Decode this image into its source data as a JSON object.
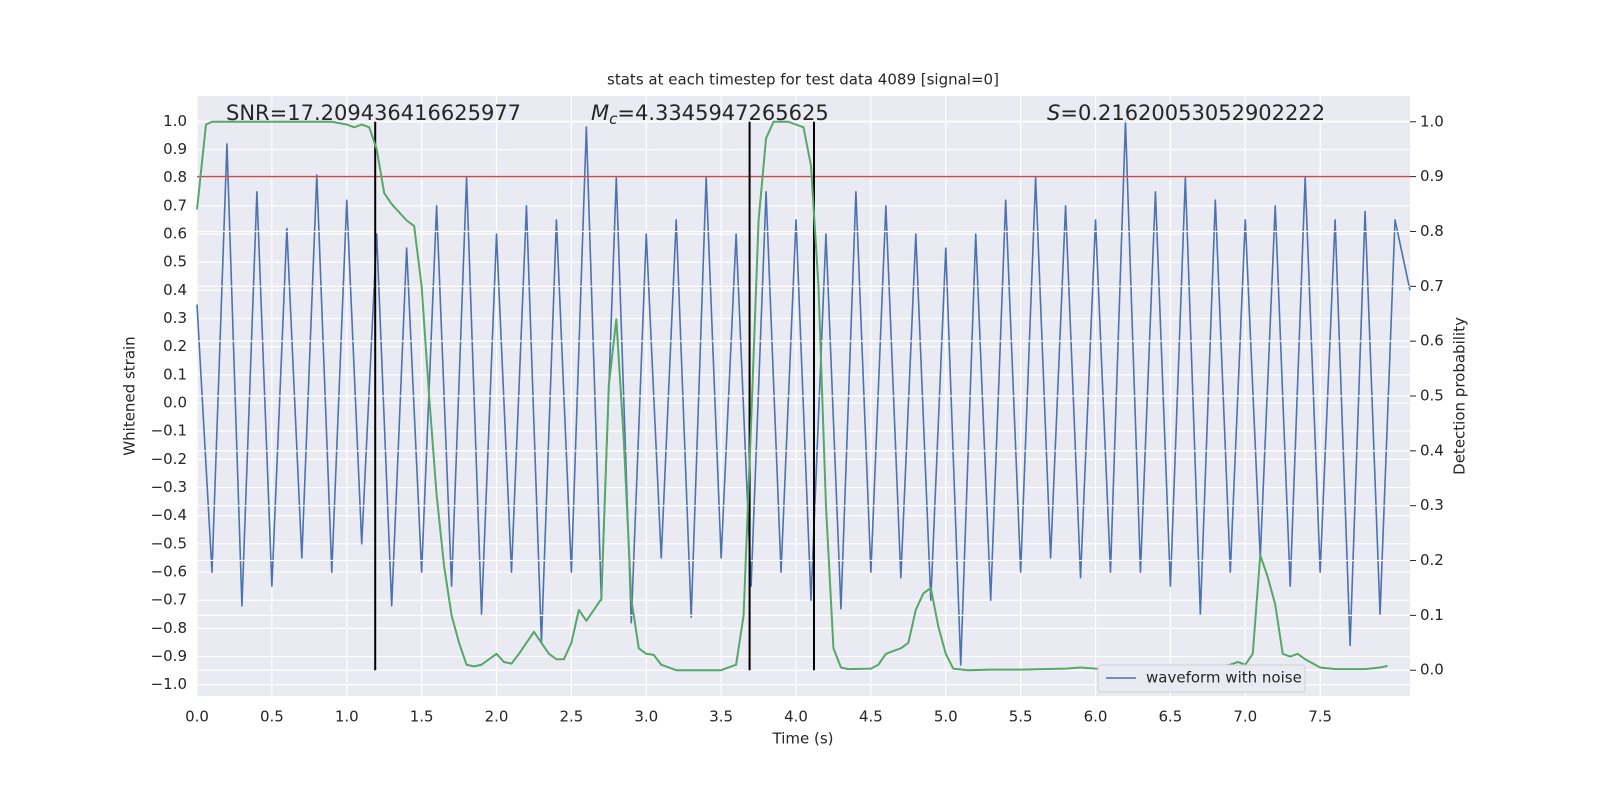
{
  "chart_data": {
    "type": "line",
    "title": "stats at each timestep for test data 4089 [signal=0]",
    "xlabel": "Time (s)",
    "ylabel": "Whitened strain",
    "y2label": "Detection probability",
    "annotations": [
      {
        "text": "SNR=17.209436416625977"
      },
      {
        "italic": "M",
        "sub": "c",
        "text": "=4.3345947265625"
      },
      {
        "italic": "S",
        "text": "=0.21620053052902222"
      }
    ],
    "xlim": [
      0,
      8.1
    ],
    "ylim": [
      -1.04,
      1.09
    ],
    "y2lim": [
      -0.047,
      1.047
    ],
    "xticks": [
      {
        "value": 0,
        "label": "0.0"
      },
      {
        "value": 0.5,
        "label": "0.5"
      },
      {
        "value": 1,
        "label": "1.0"
      },
      {
        "value": 1.5,
        "label": "1.5"
      },
      {
        "value": 2,
        "label": "2.0"
      },
      {
        "value": 2.5,
        "label": "2.5"
      },
      {
        "value": 3,
        "label": "3.0"
      },
      {
        "value": 3.5,
        "label": "3.5"
      },
      {
        "value": 4,
        "label": "4.0"
      },
      {
        "value": 4.5,
        "label": "4.5"
      },
      {
        "value": 5,
        "label": "5.0"
      },
      {
        "value": 5.5,
        "label": "5.5"
      },
      {
        "value": 6,
        "label": "6.0"
      },
      {
        "value": 6.5,
        "label": "6.5"
      },
      {
        "value": 7,
        "label": "7.0"
      },
      {
        "value": 7.5,
        "label": "7.5"
      }
    ],
    "yticks": [
      {
        "value": -1,
        "label": "−1.0"
      },
      {
        "value": -0.9,
        "label": "−0.9"
      },
      {
        "value": -0.8,
        "label": "−0.8"
      },
      {
        "value": -0.7,
        "label": "−0.7"
      },
      {
        "value": -0.6,
        "label": "−0.6"
      },
      {
        "value": -0.5,
        "label": "−0.5"
      },
      {
        "value": -0.4,
        "label": "−0.4"
      },
      {
        "value": -0.3,
        "label": "−0.3"
      },
      {
        "value": -0.2,
        "label": "−0.2"
      },
      {
        "value": -0.1,
        "label": "−0.1"
      },
      {
        "value": 0,
        "label": "0.0"
      },
      {
        "value": 0.1,
        "label": "0.1"
      },
      {
        "value": 0.2,
        "label": "0.2"
      },
      {
        "value": 0.3,
        "label": "0.3"
      },
      {
        "value": 0.4,
        "label": "0.4"
      },
      {
        "value": 0.5,
        "label": "0.5"
      },
      {
        "value": 0.6,
        "label": "0.6"
      },
      {
        "value": 0.7,
        "label": "0.7"
      },
      {
        "value": 0.8,
        "label": "0.8"
      },
      {
        "value": 0.9,
        "label": "0.9"
      },
      {
        "value": 1,
        "label": "1.0"
      }
    ],
    "y2ticks": [
      {
        "value": 0,
        "label": "0.0"
      },
      {
        "value": 0.1,
        "label": "0.1"
      },
      {
        "value": 0.2,
        "label": "0.2"
      },
      {
        "value": 0.3,
        "label": "0.3"
      },
      {
        "value": 0.4,
        "label": "0.4"
      },
      {
        "value": 0.5,
        "label": "0.5"
      },
      {
        "value": 0.6,
        "label": "0.6"
      },
      {
        "value": 0.7,
        "label": "0.7"
      },
      {
        "value": 0.8,
        "label": "0.8"
      },
      {
        "value": 0.9,
        "label": "0.9"
      },
      {
        "value": 1,
        "label": "1.0"
      }
    ],
    "grid": true,
    "legend_loc": "lower right",
    "vlines": [
      1.19,
      3.69,
      4.12
    ],
    "vline_color": "#000000",
    "threshold": 0.9,
    "threshold_color": "#c44e52",
    "series": [
      {
        "name": "waveform with noise",
        "color": "#4c72b0",
        "x": [
          0,
          0.1,
          0.2,
          0.3,
          0.4,
          0.5,
          0.6,
          0.7,
          0.8,
          0.9,
          1,
          1.1,
          1.2,
          1.3,
          1.4,
          1.5,
          1.6,
          1.7,
          1.8,
          1.9,
          2,
          2.1,
          2.2,
          2.3,
          2.4,
          2.5,
          2.6,
          2.7,
          2.8,
          2.9,
          3,
          3.1,
          3.2,
          3.3,
          3.4,
          3.5,
          3.6,
          3.7,
          3.8,
          3.9,
          4,
          4.1,
          4.2,
          4.3,
          4.4,
          4.5,
          4.6,
          4.7,
          4.8,
          4.9,
          5,
          5.1,
          5.2,
          5.3,
          5.4,
          5.5,
          5.6,
          5.7,
          5.8,
          5.9,
          6,
          6.1,
          6.2,
          6.3,
          6.4,
          6.5,
          6.6,
          6.7,
          6.8,
          6.9,
          7,
          7.1,
          7.2,
          7.3,
          7.4,
          7.5,
          7.6,
          7.7,
          7.8,
          7.9,
          8,
          8.1
        ],
        "values": [
          0.35,
          -0.6,
          0.92,
          -0.72,
          0.75,
          -0.65,
          0.62,
          -0.55,
          0.81,
          -0.6,
          0.72,
          -0.5,
          0.6,
          -0.72,
          0.55,
          -0.6,
          0.7,
          -0.65,
          0.8,
          -0.75,
          0.6,
          -0.6,
          0.7,
          -0.85,
          0.65,
          -0.6,
          0.98,
          -0.7,
          0.8,
          -0.78,
          0.6,
          -0.55,
          0.65,
          -0.76,
          0.8,
          -0.55,
          0.6,
          -0.65,
          0.75,
          -0.6,
          0.65,
          -0.7,
          0.6,
          -0.73,
          0.75,
          -0.6,
          0.7,
          -0.62,
          0.6,
          -0.7,
          0.55,
          -0.93,
          0.6,
          -0.7,
          0.72,
          -0.6,
          0.8,
          -0.55,
          0.7,
          -0.62,
          0.65,
          -0.6,
          1.0,
          -0.6,
          0.75,
          -0.65,
          0.8,
          -0.75,
          0.72,
          -0.6,
          0.65,
          -0.55,
          0.7,
          -0.65,
          0.8,
          -0.6,
          0.65,
          -0.86,
          0.68,
          -0.75,
          0.65,
          0.4
        ]
      },
      {
        "color": "#55a868",
        "axis": "y2",
        "x": [
          0,
          0.06,
          0.1,
          0.3,
          0.5,
          0.7,
          0.9,
          1,
          1.05,
          1.1,
          1.15,
          1.2,
          1.25,
          1.3,
          1.4,
          1.45,
          1.5,
          1.55,
          1.6,
          1.65,
          1.7,
          1.75,
          1.8,
          1.85,
          1.9,
          2,
          2.05,
          2.1,
          2.15,
          2.25,
          2.3,
          2.35,
          2.4,
          2.45,
          2.5,
          2.55,
          2.6,
          2.65,
          2.7,
          2.75,
          2.8,
          2.85,
          2.9,
          2.95,
          3,
          3.05,
          3.1,
          3.2,
          3.3,
          3.5,
          3.6,
          3.65,
          3.7,
          3.75,
          3.8,
          3.85,
          3.95,
          4.05,
          4.1,
          4.15,
          4.2,
          4.25,
          4.3,
          4.35,
          4.5,
          4.55,
          4.6,
          4.7,
          4.75,
          4.8,
          4.85,
          4.9,
          4.95,
          5,
          5.05,
          5.15,
          5.3,
          5.5,
          5.8,
          5.9,
          6,
          6.2,
          6.5,
          6.8,
          6.9,
          6.95,
          7,
          7.05,
          7.1,
          7.15,
          7.2,
          7.25,
          7.3,
          7.35,
          7.4,
          7.5,
          7.6,
          7.8,
          7.9,
          7.95
        ],
        "values": [
          0.84,
          0.995,
          1.0,
          1.0,
          1.0,
          1.0,
          1.0,
          0.995,
          0.99,
          0.995,
          0.99,
          0.95,
          0.87,
          0.85,
          0.82,
          0.81,
          0.7,
          0.5,
          0.32,
          0.19,
          0.1,
          0.05,
          0.01,
          0.007,
          0.01,
          0.03,
          0.015,
          0.012,
          0.03,
          0.07,
          0.05,
          0.03,
          0.02,
          0.02,
          0.05,
          0.11,
          0.09,
          0.11,
          0.13,
          0.52,
          0.64,
          0.42,
          0.13,
          0.04,
          0.03,
          0.028,
          0.01,
          0.0,
          0.0,
          0.0,
          0.01,
          0.1,
          0.45,
          0.82,
          0.97,
          1.0,
          1.0,
          0.99,
          0.92,
          0.7,
          0.3,
          0.04,
          0.005,
          0.002,
          0.003,
          0.01,
          0.03,
          0.04,
          0.05,
          0.11,
          0.14,
          0.15,
          0.08,
          0.03,
          0.003,
          0.0,
          0.001,
          0.001,
          0.003,
          0.005,
          0.003,
          0.002,
          0.002,
          0.005,
          0.01,
          0.015,
          0.01,
          0.03,
          0.21,
          0.17,
          0.12,
          0.03,
          0.025,
          0.03,
          0.02,
          0.005,
          0.002,
          0.002,
          0.005,
          0.008
        ]
      }
    ]
  }
}
